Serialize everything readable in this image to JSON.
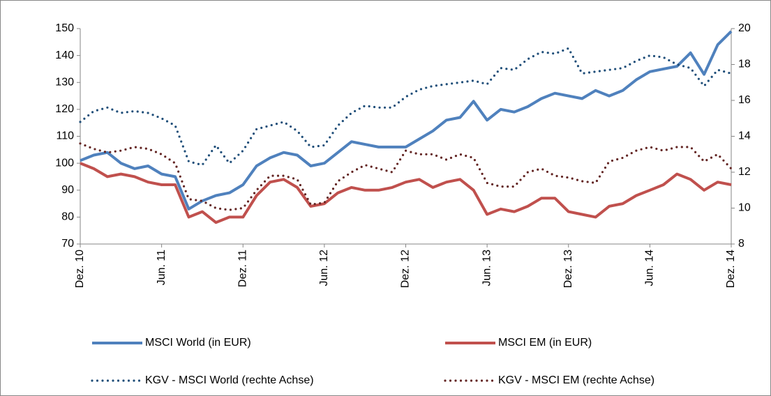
{
  "chart_data": {
    "type": "line",
    "categories": [
      "Dez. 10",
      null,
      null,
      null,
      null,
      null,
      "Jun. 11",
      null,
      null,
      null,
      null,
      null,
      "Dez. 11",
      null,
      null,
      null,
      null,
      null,
      "Jun. 12",
      null,
      null,
      null,
      null,
      null,
      "Dez. 12",
      null,
      null,
      null,
      null,
      null,
      "Jun. 13",
      null,
      null,
      null,
      null,
      null,
      "Dez. 13",
      null,
      null,
      null,
      null,
      null,
      "Jun. 14",
      null,
      null,
      null,
      null,
      null,
      "Dez. 14"
    ],
    "ylim": [
      70,
      150
    ],
    "yticks": [
      70,
      80,
      90,
      100,
      110,
      120,
      130,
      140,
      150
    ],
    "y2lim": [
      8,
      20
    ],
    "y2ticks": [
      8,
      10,
      12,
      14,
      16,
      18,
      20
    ],
    "grid": false,
    "legend": "bottom",
    "series": [
      {
        "name": "MSCI World (in EUR)",
        "color": "#4f81bd",
        "style": "solid",
        "axis": "y",
        "values": [
          101,
          103,
          104,
          100,
          98,
          99,
          96,
          95,
          83,
          86,
          88,
          89,
          92,
          99,
          102,
          104,
          103,
          99,
          100,
          104,
          108,
          107,
          106,
          106,
          106,
          109,
          112,
          116,
          117,
          123,
          116,
          120,
          119,
          121,
          124,
          126,
          125,
          124,
          127,
          125,
          127,
          131,
          134,
          135,
          136,
          141,
          133,
          144,
          149
        ]
      },
      {
        "name": "MSCI EM (in EUR)",
        "color": "#c0504d",
        "style": "solid",
        "axis": "y",
        "values": [
          100,
          98,
          95,
          96,
          95,
          93,
          92,
          92,
          80,
          82,
          78,
          80,
          80,
          88,
          93,
          94,
          91,
          84,
          85,
          89,
          91,
          90,
          90,
          91,
          93,
          94,
          91,
          93,
          94,
          90,
          81,
          83,
          82,
          84,
          87,
          87,
          82,
          81,
          80,
          84,
          85,
          88,
          90,
          92,
          96,
          94,
          90,
          93,
          92
        ]
      },
      {
        "name": "KGV - MSCI World (rechte Achse)",
        "color": "#1f4e79",
        "style": "dotted",
        "axis": "y2",
        "values": [
          14.8,
          15.4,
          15.6,
          15.3,
          15.4,
          15.3,
          15.0,
          14.6,
          12.6,
          12.4,
          13.5,
          12.5,
          13.2,
          14.4,
          14.6,
          14.8,
          14.3,
          13.4,
          13.5,
          14.6,
          15.3,
          15.7,
          15.6,
          15.6,
          16.2,
          16.6,
          16.8,
          16.9,
          17.0,
          17.1,
          16.9,
          17.8,
          17.7,
          18.3,
          18.7,
          18.6,
          18.9,
          17.5,
          17.6,
          17.7,
          17.8,
          18.2,
          18.5,
          18.4,
          18.0,
          17.8,
          16.8,
          17.7,
          17.5
        ]
      },
      {
        "name": "KGV - MSCI EM (rechte Achse)",
        "color": "#632523",
        "style": "dotted",
        "axis": "y2",
        "values": [
          13.6,
          13.3,
          13.1,
          13.2,
          13.4,
          13.3,
          13.0,
          12.5,
          10.5,
          10.4,
          10.0,
          9.9,
          10.0,
          11.0,
          11.8,
          11.8,
          11.6,
          10.2,
          10.3,
          11.5,
          12.0,
          12.4,
          12.2,
          12.0,
          13.2,
          13.0,
          13.0,
          12.7,
          13.0,
          12.8,
          11.4,
          11.2,
          11.2,
          12.0,
          12.2,
          11.8,
          11.7,
          11.5,
          11.4,
          12.6,
          12.8,
          13.2,
          13.4,
          13.2,
          13.4,
          13.4,
          12.6,
          13.0,
          12.2
        ]
      }
    ]
  }
}
